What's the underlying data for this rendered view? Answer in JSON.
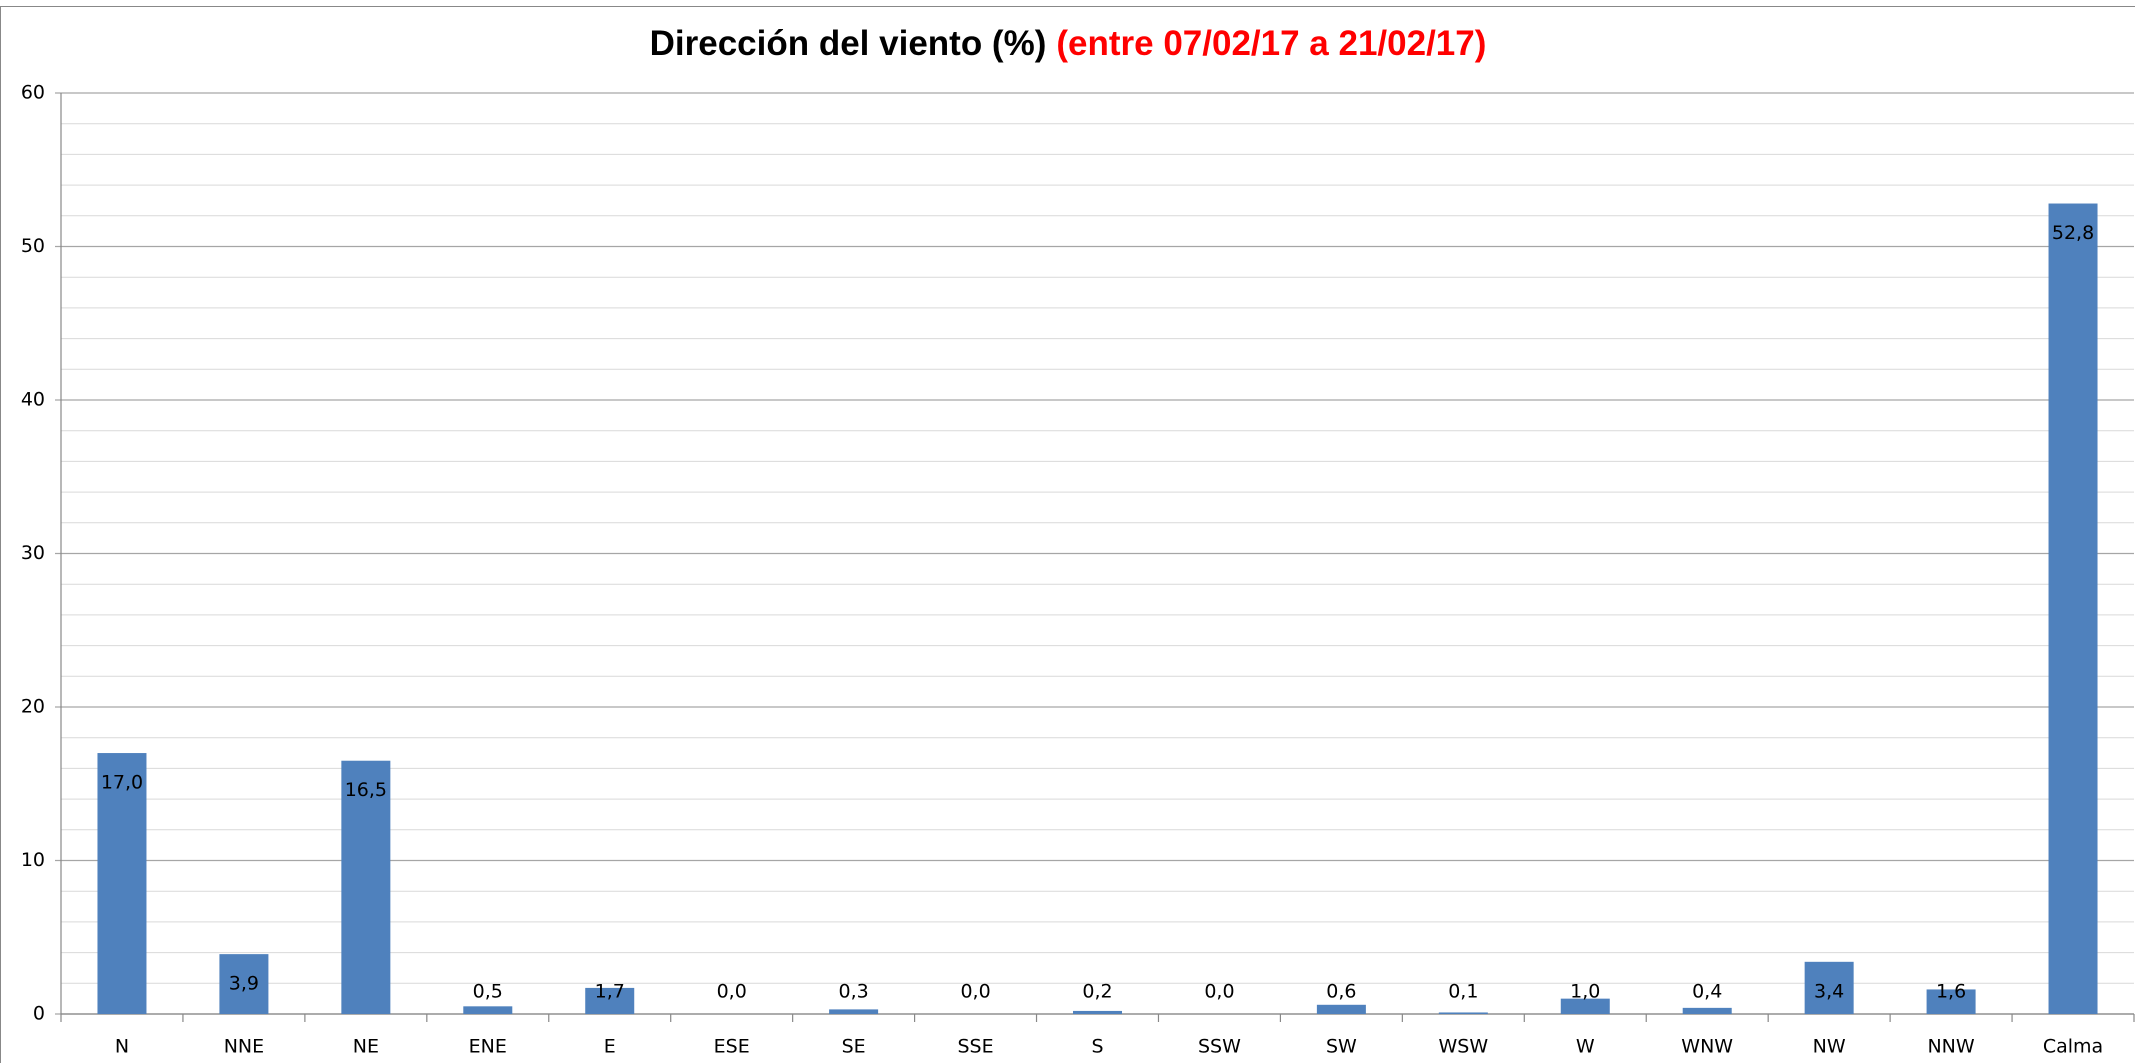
{
  "chart_data": {
    "type": "bar",
    "title": "Dirección del viento (%)",
    "subtitle": "(entre 07/02/17 a 21/02/17)",
    "categories": [
      "N",
      "NNE",
      "NE",
      "ENE",
      "E",
      "ESE",
      "SE",
      "SSE",
      "S",
      "SSW",
      "SW",
      "WSW",
      "W",
      "WNW",
      "NW",
      "NNW",
      "Calma"
    ],
    "values": [
      17.0,
      3.9,
      16.5,
      0.5,
      1.7,
      0.0,
      0.3,
      0.0,
      0.2,
      0.0,
      0.6,
      0.1,
      1.0,
      0.4,
      3.4,
      1.6,
      52.8
    ],
    "value_labels": [
      "17,0",
      "3,9",
      "16,5",
      "0,5",
      "1,7",
      "0,0",
      "0,3",
      "0,0",
      "0,2",
      "0,0",
      "0,6",
      "0,1",
      "1,0",
      "0,4",
      "3,4",
      "1,6",
      "52,8"
    ],
    "color": "#4f81bd",
    "ylim": [
      0,
      60
    ],
    "yticks": [
      0,
      10,
      20,
      30,
      40,
      50,
      60
    ],
    "yminorticks": [
      2,
      4,
      6,
      8,
      12,
      14,
      16,
      18,
      22,
      24,
      26,
      28,
      32,
      34,
      36,
      38,
      42,
      44,
      46,
      48,
      52,
      54,
      56,
      58
    ],
    "grid": true
  }
}
